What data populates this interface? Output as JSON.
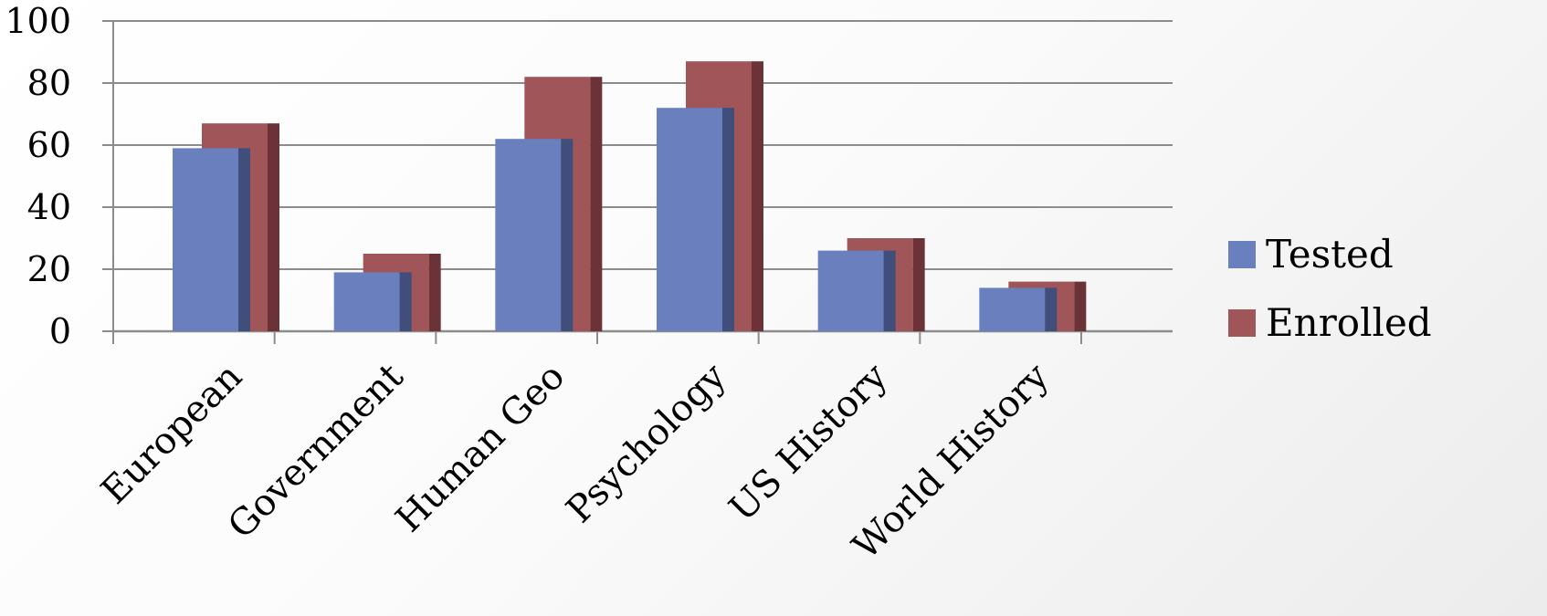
{
  "chart_data": {
    "type": "bar",
    "categories": [
      "European",
      "Government",
      "Human Geo",
      "Psychology",
      "US History",
      "World History"
    ],
    "series": [
      {
        "name": "Tested",
        "values": [
          59,
          19,
          62,
          72,
          26,
          14
        ],
        "color": "#6a7fbd",
        "side_color": "#3f4e7a"
      },
      {
        "name": "Enrolled",
        "values": [
          67,
          25,
          82,
          87,
          30,
          16
        ],
        "color": "#a05659",
        "side_color": "#6b3337"
      }
    ],
    "ylim": [
      0,
      100
    ],
    "yticks": [
      0,
      20,
      40,
      60,
      80,
      100
    ],
    "grid": true,
    "legend": "right",
    "title": "",
    "xlabel": "",
    "ylabel": ""
  }
}
